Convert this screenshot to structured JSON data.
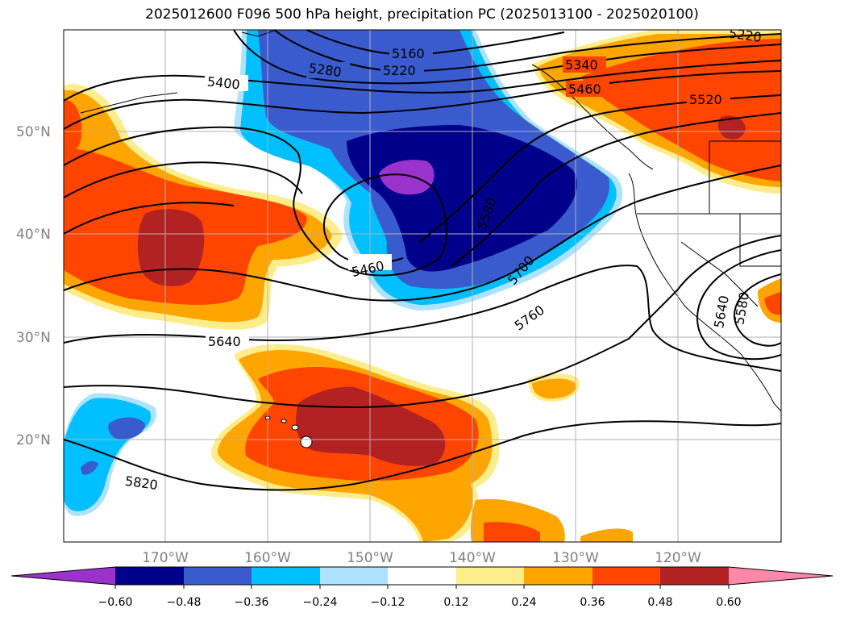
{
  "title": "2025012600 F096 500 hPa height, precipitation PC (2025013100 - 2025020100)",
  "colors": {
    "le_neg060": "#9933cc",
    "neg060_neg048": "#00008b",
    "neg048_neg036": "#3a5bcd",
    "neg036_neg024": "#00bfff",
    "neg024_neg012": "#aee3ff",
    "neutral": "#ffffff",
    "p012_p024": "#ffec8b",
    "p024_p036": "#ffa500",
    "p036_p048": "#ff4500",
    "p048_p060": "#b22222",
    "ge_p060": "#ff88aa",
    "contour": "#000000",
    "grid": "#b0b0b0"
  },
  "axes": {
    "lat_ticks": [
      "50°N",
      "40°N",
      "30°N",
      "20°N"
    ],
    "lon_ticks": [
      "170°W",
      "160°W",
      "150°W",
      "140°W",
      "130°W",
      "120°W"
    ]
  },
  "contour_labels": [
    "5160",
    "5220",
    "5280",
    "5400",
    "5220",
    "5340",
    "5460",
    "5520",
    "5580",
    "5460",
    "5700",
    "5760",
    "5640",
    "5640",
    "5580",
    "5820"
  ],
  "colorbar": {
    "ticks": [
      "−0.60",
      "−0.48",
      "−0.36",
      "−0.24",
      "−0.12",
      "0.12",
      "0.24",
      "0.36",
      "0.48",
      "0.60"
    ]
  }
}
